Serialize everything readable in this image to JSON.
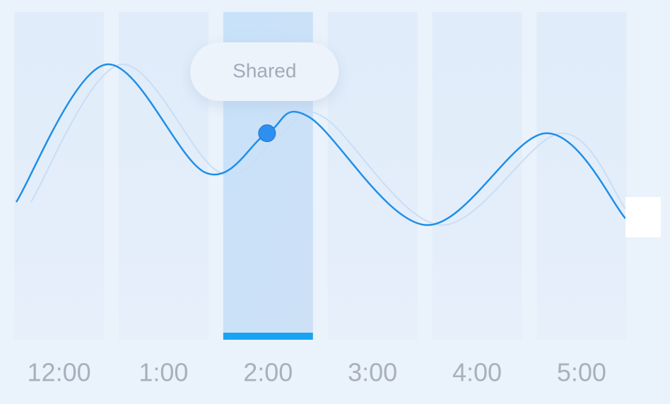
{
  "chart_data": {
    "type": "line",
    "categories": [
      "12:00",
      "1:00",
      "2:00",
      "3:00",
      "4:00",
      "5:00"
    ],
    "selected": 2,
    "tooltip": {
      "text": "Shared",
      "series": 0,
      "point": 3
    },
    "xlim": [
      -0.43,
      5.42
    ],
    "ylim": [
      0,
      100
    ],
    "series": [
      {
        "color": "#1f8fe8",
        "x": [
          -0.41,
          0.45,
          1.4,
          1.99,
          2.39,
          3.51,
          4.66,
          5.42
        ],
        "values": [
          42,
          84,
          51,
          63,
          68,
          35,
          63,
          37
        ]
      },
      {
        "color": "#c9def5",
        "x": [
          -0.27,
          0.59,
          1.54,
          2.13,
          2.53,
          3.65,
          4.8,
          5.42
        ],
        "values": [
          42,
          84,
          51,
          63,
          68,
          35,
          63,
          40
        ]
      }
    ]
  }
}
